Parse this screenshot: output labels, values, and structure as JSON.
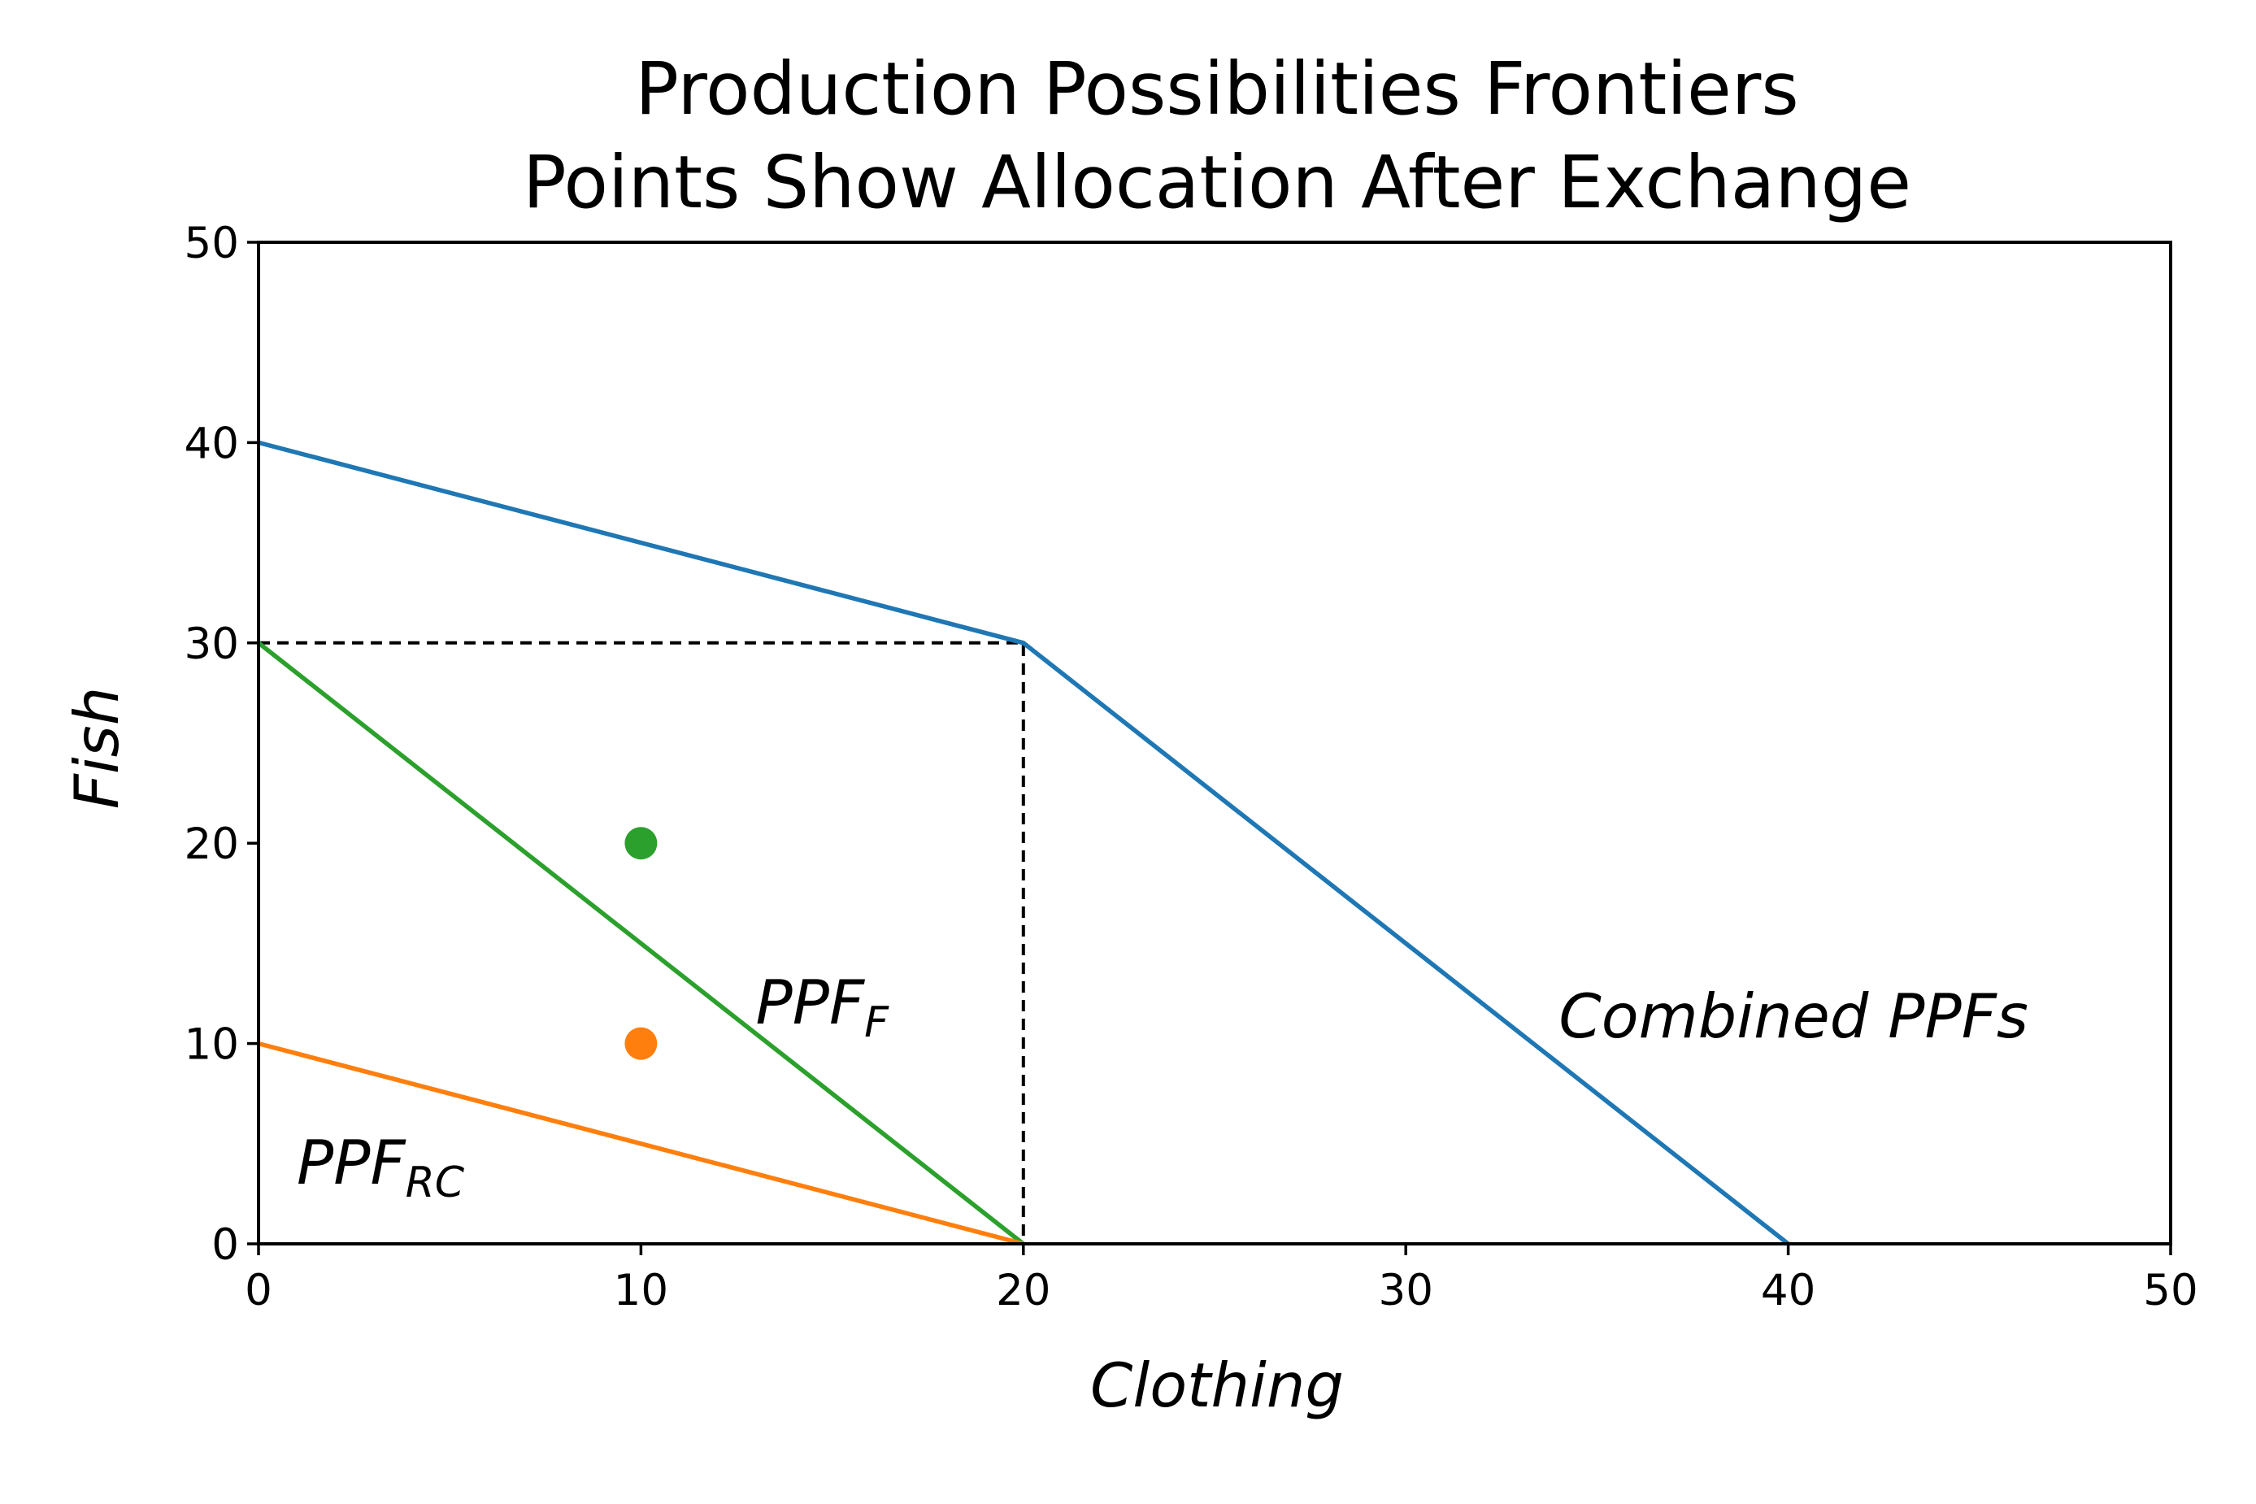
{
  "chart_data": {
    "type": "line",
    "title_lines": [
      "Production Possibilities Frontiers",
      "Points Show Allocation After Exchange"
    ],
    "xlabel": "Clothing",
    "ylabel": "Fish",
    "xlim": [
      0,
      50
    ],
    "ylim": [
      0,
      50
    ],
    "xticks": [
      0,
      10,
      20,
      30,
      40,
      50
    ],
    "yticks": [
      0,
      10,
      20,
      30,
      40,
      50
    ],
    "grid": false,
    "series": [
      {
        "key": "combined",
        "color": "#1f77b4",
        "style": "solid",
        "points": [
          [
            0,
            40
          ],
          [
            20,
            30
          ],
          [
            40,
            0
          ]
        ]
      },
      {
        "key": "ppf_f",
        "color": "#2ca02c",
        "style": "solid",
        "points": [
          [
            0,
            30
          ],
          [
            20,
            0
          ]
        ]
      },
      {
        "key": "ppf_rc",
        "color": "#ff7f0e",
        "style": "solid",
        "points": [
          [
            0,
            10
          ],
          [
            20,
            0
          ]
        ]
      },
      {
        "key": "guide",
        "color": "#000000",
        "style": "dashed",
        "points": [
          [
            0,
            30
          ],
          [
            20,
            30
          ],
          [
            20,
            0
          ]
        ]
      }
    ],
    "scatter": [
      {
        "x": 10,
        "y": 20,
        "color": "#2ca02c"
      },
      {
        "x": 10,
        "y": 10,
        "color": "#ff7f0e"
      }
    ],
    "annotations": [
      {
        "key": "ppf_f_label",
        "base": "PPF",
        "sub": "F",
        "x": 13,
        "y": 11
      },
      {
        "key": "ppf_rc_label",
        "base": "PPF",
        "sub": "RC",
        "x": 1,
        "y": 3
      },
      {
        "key": "combined_label",
        "text": "Combined PPFs",
        "x": 34,
        "y": 10.3
      }
    ]
  }
}
